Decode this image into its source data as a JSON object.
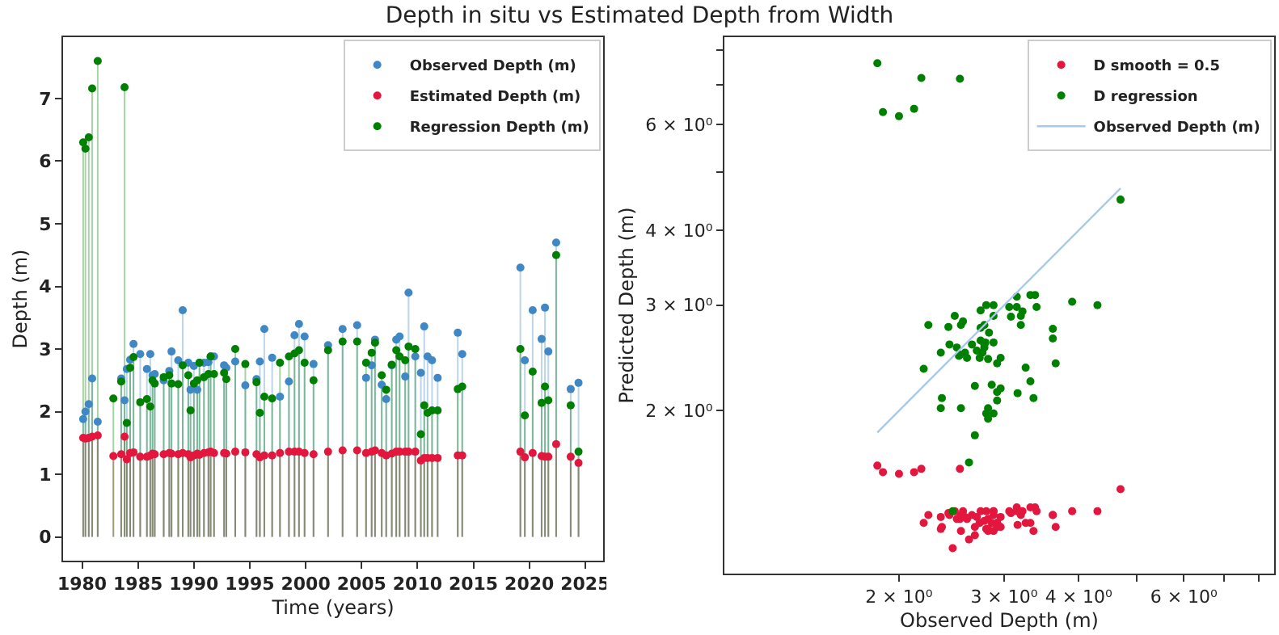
{
  "chart_data": [
    {
      "type": "lollipop",
      "title": "Depth in situ vs Estimated Depth from Width",
      "xlabel": "Time (years)",
      "ylabel": "Depth (m)",
      "xlim": [
        1978.3,
        2026.6
      ],
      "ylim": [
        -0.38,
        7.98
      ],
      "xticks": [
        1980,
        1985,
        1990,
        1995,
        2000,
        2005,
        2010,
        2015,
        2020,
        2025
      ],
      "yticks": [
        0,
        1,
        2,
        3,
        4,
        5,
        6,
        7
      ],
      "legend": "top right",
      "marker": "circle",
      "grid": false,
      "x": [
        1980.1,
        1980.3,
        1980.6,
        1980.9,
        1981.4,
        1982.8,
        1983.5,
        1983.8,
        1984.0,
        1984.3,
        1984.6,
        1985.2,
        1985.8,
        1986.1,
        1986.3,
        1986.5,
        1987.3,
        1987.8,
        1988.0,
        1988.6,
        1989.0,
        1989.5,
        1989.7,
        1990.0,
        1990.3,
        1990.5,
        1990.9,
        1991.3,
        1991.5,
        1991.8,
        1992.7,
        1992.9,
        1993.7,
        1994.6,
        1995.6,
        1995.9,
        1996.3,
        1997.0,
        1997.7,
        1998.5,
        1999.0,
        1999.4,
        1999.9,
        2000.7,
        2002.0,
        2003.3,
        2004.6,
        2005.4,
        2005.9,
        2006.2,
        2006.8,
        2007.2,
        2007.7,
        2008.1,
        2008.4,
        2008.9,
        2009.2,
        2009.8,
        2010.3,
        2010.6,
        2010.9,
        2011.3,
        2011.8,
        2013.6,
        2014.0,
        2019.2,
        2019.6,
        2020.3,
        2021.1,
        2021.4,
        2021.7,
        2022.4,
        2023.7,
        2024.4
      ],
      "series": [
        {
          "name": "Observed Depth (m)",
          "color": "#3f88c5",
          "values": [
            1.88,
            2.0,
            2.12,
            2.53,
            1.84,
            null,
            2.53,
            2.18,
            2.68,
            2.83,
            3.08,
            2.92,
            2.68,
            2.92,
            2.58,
            2.6,
            2.5,
            2.65,
            2.96,
            2.82,
            3.62,
            2.78,
            2.35,
            2.73,
            2.35,
            2.78,
            2.78,
            2.79,
            2.88,
            2.88,
            2.74,
            2.7,
            2.8,
            2.42,
            2.52,
            2.8,
            3.32,
            2.86,
            2.24,
            2.48,
            3.22,
            3.4,
            3.2,
            2.76,
            3.06,
            3.32,
            3.38,
            2.54,
            2.74,
            3.15,
            2.43,
            2.2,
            2.74,
            3.15,
            3.2,
            2.56,
            3.9,
            2.88,
            2.62,
            3.36,
            2.88,
            2.82,
            2.54,
            3.26,
            2.92,
            4.3,
            2.82,
            3.62,
            3.16,
            3.66,
            2.96,
            4.7,
            2.36,
            2.46
          ]
        },
        {
          "name": "Estimated Depth (m)",
          "color": "#e3173e",
          "values": [
            1.58,
            1.57,
            1.58,
            1.6,
            1.62,
            1.29,
            1.32,
            1.6,
            1.24,
            1.34,
            1.35,
            1.28,
            1.28,
            1.3,
            1.33,
            1.32,
            1.32,
            1.34,
            1.33,
            1.32,
            1.34,
            1.32,
            1.27,
            1.3,
            1.33,
            1.31,
            1.34,
            1.35,
            1.36,
            1.34,
            1.34,
            1.33,
            1.36,
            1.35,
            1.32,
            1.27,
            1.3,
            1.3,
            1.34,
            1.36,
            1.36,
            1.36,
            1.34,
            1.32,
            1.36,
            1.38,
            1.38,
            1.34,
            1.36,
            1.38,
            1.34,
            1.3,
            1.33,
            1.36,
            1.36,
            1.36,
            1.36,
            1.36,
            1.22,
            1.26,
            1.26,
            1.26,
            1.26,
            1.3,
            1.3,
            1.36,
            1.27,
            1.34,
            1.29,
            1.28,
            1.28,
            1.48,
            1.28,
            1.18
          ]
        },
        {
          "name": "Regression Depth (m)",
          "color": "#008000",
          "values": [
            6.3,
            6.2,
            6.38,
            7.16,
            7.6,
            2.21,
            2.48,
            7.18,
            1.82,
            2.7,
            2.87,
            2.15,
            2.2,
            2.08,
            2.5,
            2.45,
            2.55,
            2.58,
            2.45,
            2.44,
            2.74,
            2.58,
            2.02,
            2.45,
            2.5,
            2.78,
            2.55,
            2.6,
            2.88,
            2.6,
            2.62,
            2.52,
            3.0,
            2.76,
            2.47,
            1.98,
            2.24,
            2.21,
            2.78,
            2.88,
            2.93,
            2.98,
            2.78,
            2.5,
            2.98,
            3.12,
            3.12,
            2.78,
            2.94,
            3.1,
            2.58,
            2.35,
            2.75,
            2.98,
            2.88,
            2.82,
            3.04,
            3.0,
            1.64,
            2.1,
            1.98,
            2.02,
            2.02,
            2.36,
            2.4,
            3.0,
            1.94,
            2.64,
            2.14,
            2.4,
            2.18,
            4.5,
            2.1,
            1.36
          ]
        }
      ]
    },
    {
      "type": "scatter",
      "xlabel": "Observed Depth (m)",
      "ylabel": "Predicted Depth (m)",
      "log": "xy",
      "xlim": [
        1.02,
        8.5
      ],
      "ylim": [
        1.07,
        8.4
      ],
      "legend": "top right",
      "marker": "circle",
      "grid": false,
      "xticks": [
        {
          "value": 2,
          "label": "2 × 10⁰"
        },
        {
          "value": 3,
          "label": "3 × 10⁰"
        },
        {
          "value": 4,
          "label": "4 × 10⁰"
        },
        {
          "value": 5,
          "label": null
        },
        {
          "value": 6,
          "label": "6 × 10⁰"
        },
        {
          "value": 7,
          "label": null
        },
        {
          "value": 8,
          "label": null
        }
      ],
      "yticks": [
        {
          "value": 2,
          "label": "2 × 10⁰"
        },
        {
          "value": 3,
          "label": "3 × 10⁰"
        },
        {
          "value": 4,
          "label": "4 × 10⁰"
        },
        {
          "value": 5,
          "label": null
        },
        {
          "value": 6,
          "label": "6 × 10⁰"
        },
        {
          "value": 7,
          "label": null
        },
        {
          "value": 8,
          "label": null
        }
      ],
      "series": [
        {
          "name": "D smooth = 0.5",
          "color": "#e3173e",
          "x": [
            1.88,
            2.0,
            2.12,
            2.53,
            1.84,
            2.53,
            2.18,
            2.68,
            3.08,
            2.92,
            2.68,
            2.92,
            2.58,
            2.6,
            2.5,
            2.65,
            2.96,
            2.82,
            3.62,
            2.35,
            2.73,
            2.35,
            2.78,
            2.88,
            2.88,
            2.7,
            2.8,
            2.42,
            2.8,
            3.32,
            2.86,
            2.24,
            2.48,
            3.22,
            3.4,
            3.2,
            3.06,
            3.32,
            3.38,
            2.54,
            2.74,
            3.15,
            2.43,
            2.2,
            3.15,
            2.56,
            3.9,
            2.88,
            2.62,
            3.36,
            2.88,
            2.82,
            2.54,
            3.26,
            2.92,
            4.3,
            2.82,
            3.62,
            3.16,
            3.66,
            2.96,
            4.7,
            2.36,
            2.46
          ],
          "values": [
            1.58,
            1.57,
            1.58,
            1.6,
            1.62,
            1.32,
            1.6,
            1.24,
            1.35,
            1.28,
            1.28,
            1.3,
            1.33,
            1.32,
            1.32,
            1.34,
            1.33,
            1.32,
            1.34,
            1.27,
            1.3,
            1.33,
            1.31,
            1.36,
            1.34,
            1.33,
            1.36,
            1.35,
            1.27,
            1.3,
            1.3,
            1.34,
            1.36,
            1.36,
            1.36,
            1.34,
            1.36,
            1.38,
            1.38,
            1.34,
            1.36,
            1.38,
            1.34,
            1.3,
            1.36,
            1.36,
            1.36,
            1.36,
            1.22,
            1.26,
            1.26,
            1.26,
            1.26,
            1.3,
            1.3,
            1.36,
            1.27,
            1.34,
            1.29,
            1.28,
            1.28,
            1.48,
            1.28,
            1.18
          ]
        },
        {
          "name": "D regression",
          "color": "#008000",
          "x": [
            1.88,
            2.0,
            2.12,
            2.53,
            1.84,
            2.53,
            2.18,
            2.68,
            2.83,
            3.08,
            2.92,
            2.68,
            2.92,
            2.58,
            2.6,
            2.5,
            2.65,
            2.96,
            2.82,
            3.62,
            2.78,
            2.35,
            2.73,
            2.35,
            2.78,
            2.78,
            2.79,
            2.88,
            2.88,
            2.74,
            2.7,
            2.8,
            2.42,
            2.52,
            2.8,
            3.32,
            2.86,
            2.24,
            2.48,
            3.22,
            3.4,
            3.2,
            2.76,
            3.06,
            3.32,
            3.38,
            2.54,
            2.74,
            3.15,
            2.43,
            2.2,
            2.74,
            3.15,
            3.2,
            2.56,
            3.9,
            2.88,
            2.62,
            3.36,
            2.88,
            2.82,
            2.54,
            3.26,
            2.92,
            4.3,
            2.82,
            3.62,
            3.16,
            3.66,
            2.96,
            4.7,
            2.36,
            2.46
          ],
          "values": [
            6.3,
            6.2,
            6.38,
            7.16,
            7.6,
            2.48,
            7.18,
            1.82,
            2.7,
            2.87,
            2.15,
            2.2,
            2.08,
            2.5,
            2.45,
            2.55,
            2.58,
            2.45,
            2.44,
            2.74,
            2.58,
            2.02,
            2.45,
            2.5,
            2.78,
            2.55,
            2.6,
            2.88,
            2.6,
            2.62,
            2.52,
            3.0,
            2.76,
            2.47,
            1.98,
            2.24,
            2.21,
            2.78,
            2.88,
            2.93,
            2.98,
            2.78,
            2.5,
            2.98,
            3.12,
            3.12,
            2.78,
            2.94,
            3.1,
            2.58,
            2.35,
            2.75,
            2.98,
            2.88,
            2.82,
            3.04,
            3.0,
            1.64,
            2.1,
            1.98,
            2.02,
            2.02,
            2.36,
            2.4,
            3.0,
            1.94,
            2.64,
            2.14,
            2.4,
            2.18,
            4.5,
            2.1,
            1.36
          ]
        },
        {
          "name": "Observed Depth (m)",
          "type": "line",
          "color": "#a9c8e8",
          "line_style": "solid",
          "marker": "none",
          "x": [
            1.84,
            4.7
          ],
          "values": [
            1.84,
            4.7
          ]
        }
      ]
    }
  ]
}
